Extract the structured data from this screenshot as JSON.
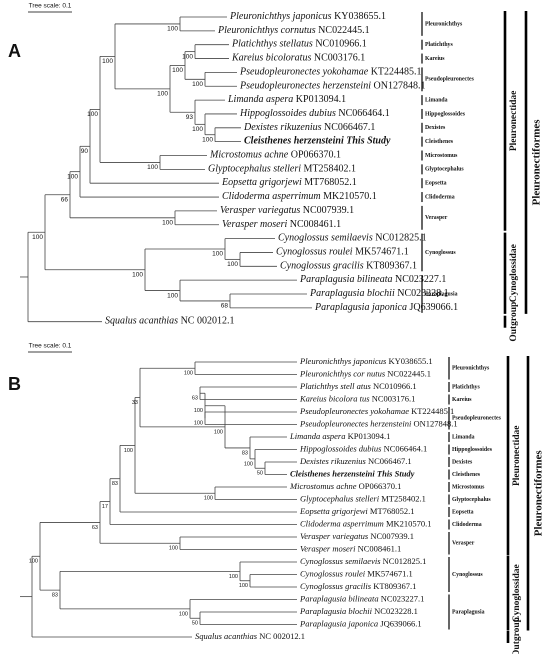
{
  "panels": [
    {
      "label": "A",
      "scale": "Tree scale: 0.1",
      "taxa": [
        {
          "species": "Pleuronichthys japonicus",
          "accession": "KY038655.1"
        },
        {
          "species": "Pleuronichthys cornutus",
          "accession": "NC022445.1"
        },
        {
          "species": "Platichthys stellatus",
          "accession": "NC010966.1"
        },
        {
          "species": "Kareius bicoloratus",
          "accession": "NC003176.1"
        },
        {
          "species": "Pseudopleuronectes yokohamae",
          "accession": "KT224485.1"
        },
        {
          "species": "Pseudopleuronectes herzensteini",
          "accession": "ON127848.1"
        },
        {
          "species": "Limanda aspera",
          "accession": "KP013094.1"
        },
        {
          "species": "Hippoglossoides dubius",
          "accession": "NC066464.1"
        },
        {
          "species": "Dexistes rikuzenius",
          "accession": "NC066467.1"
        },
        {
          "species": "Cleisthenes herzensteini",
          "accession": "This Study"
        },
        {
          "species": "Microstomus achne",
          "accession": "OP066370.1"
        },
        {
          "species": "Glyptocephalus stelleri",
          "accession": "MT258402.1"
        },
        {
          "species": "Eopsetta grigorjewi",
          "accession": "MT768052.1"
        },
        {
          "species": "Clidoderma asperrimum",
          "accession": "MK210570.1"
        },
        {
          "species": "Verasper variegatus",
          "accession": "NC007939.1"
        },
        {
          "species": "Verasper moseri",
          "accession": "NC008461.1"
        },
        {
          "species": "Cynoglossus semilaevis",
          "accession": "NC012825.1"
        },
        {
          "species": "Cynoglossus roulei",
          "accession": "MK574671.1"
        },
        {
          "species": "Cynoglossus gracilis",
          "accession": "KT809367.1"
        },
        {
          "species": "Paraplagusia bilineata",
          "accession": "NC023227.1"
        },
        {
          "species": "Paraplagusia blochii",
          "accession": "NC023228.1"
        },
        {
          "species": "Paraplagusia japonica",
          "accession": "JQ639066.1"
        },
        {
          "species": "Squalus acanthias",
          "accession": "NC 002012.1"
        }
      ],
      "bootstraps": [
        "100",
        "100",
        "100",
        "100",
        "100",
        "100",
        "93",
        "100",
        "100",
        "100",
        "100",
        "90",
        "100",
        "100",
        "66",
        "100",
        "100",
        "68",
        "100",
        "100",
        "100"
      ],
      "genera": [
        "Pleuronichthys",
        "Platichthys",
        "Kareius",
        "Pseudopleuronectes",
        "Limanda",
        "Hippoglossoides",
        "Dexistes",
        "Cleisthenes",
        "Microstomus",
        "Glyptocephalus",
        "Eopsetta",
        "Clidoderma",
        "Verasper",
        "Cynoglossus",
        "Paraplagusia"
      ],
      "families": [
        "Pleuronectidae",
        "Cynoglossidae",
        "Outgroup"
      ],
      "order": "Pleuronectiformes"
    },
    {
      "label": "B",
      "scale": "Tree scale: 0.1",
      "taxa": [
        {
          "species": "Pleuronichthys japonicus",
          "accession": "KY038655.1"
        },
        {
          "species": "Pleuronichthys cor nutus",
          "accession": "NC022445.1"
        },
        {
          "species": "Platichthys stell atus",
          "accession": "NC010966.1"
        },
        {
          "species": "Kareius bicolora tus",
          "accession": "NC003176.1"
        },
        {
          "species": "Pseudopleuronectes yokohamae",
          "accession": "KT224485.1"
        },
        {
          "species": "Pseudopleuronectes herzensteini",
          "accession": "ON127848.1"
        },
        {
          "species": "Limanda aspera",
          "accession": "KP013094.1"
        },
        {
          "species": "Hippoglossoides dubius",
          "accession": "NC066464.1"
        },
        {
          "species": "Dexistes rikuzenius",
          "accession": "NC066467.1"
        },
        {
          "species": "Cleisthenes herzensteini",
          "accession": "This Study"
        },
        {
          "species": "Microstomus achne",
          "accession": "OP066370.1"
        },
        {
          "species": "Glyptocephalus stelleri",
          "accession": "MT258402.1"
        },
        {
          "species": "Eopsetta grigorjewi",
          "accession": "MT768052.1"
        },
        {
          "species": "Clidoderma asperrimum",
          "accession": "MK210570.1"
        },
        {
          "species": "Verasper variegatus",
          "accession": "NC007939.1"
        },
        {
          "species": "Verasper moseri",
          "accession": "NC008461.1"
        },
        {
          "species": "Cynoglossus semilaevis",
          "accession": "NC012825.1"
        },
        {
          "species": "Cynoglossus roulei",
          "accession": "MK574671.1"
        },
        {
          "species": "Cynoglossus gracilis",
          "accession": "KT809367.1"
        },
        {
          "species": "Paraplagusia bilineata",
          "accession": "NC023227.1"
        },
        {
          "species": "Paraplagusia blochii",
          "accession": "NC023228.1"
        },
        {
          "species": "Paraplagusia japonica",
          "accession": "JQ639066.1"
        },
        {
          "species": "Squalus acanthias",
          "accession": "NC 002012.1"
        }
      ],
      "bootstraps": [
        "100",
        "63",
        "100",
        "100",
        "50",
        "100",
        "83",
        "100",
        "33",
        "100",
        "100",
        "83",
        "17",
        "100",
        "63",
        "100",
        "100",
        "50",
        "100",
        "83",
        "100"
      ],
      "genera": [
        "Pleuronichthys",
        "Platichthys",
        "Kareius",
        "Pseudopleuronectes",
        "Limanda",
        "Hippoglossoides",
        "Dexistes",
        "Cleisthenes",
        "Microstomus",
        "Glyptocephalus",
        "Eopsetta",
        "Clidoderma",
        "Verasper",
        "Cynoglossus",
        "Paraplagusia"
      ],
      "families": [
        "Pleuronectidae",
        "Cynoglossidae",
        "Outgroup"
      ],
      "order": "Pleuronectiformes"
    }
  ]
}
